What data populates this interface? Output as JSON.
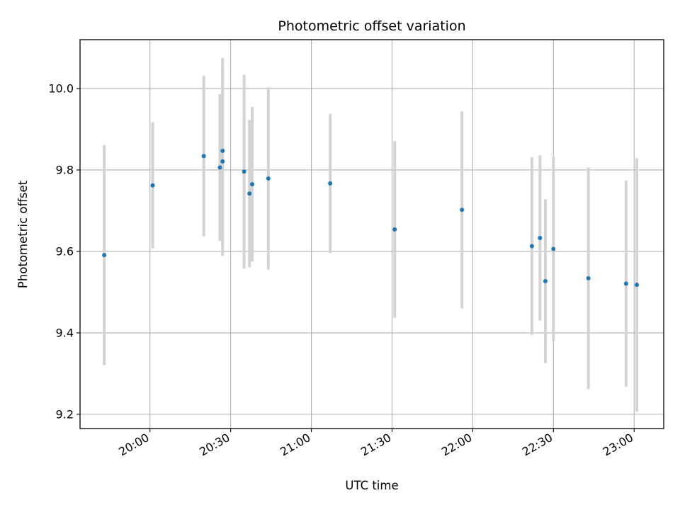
{
  "chart_data": {
    "type": "scatter",
    "title": "Photometric offset variation",
    "xlabel": "UTC time",
    "ylabel": "Photometric offset",
    "x_ticks": [
      "20:00",
      "20:30",
      "21:00",
      "21:30",
      "22:00",
      "22:30",
      "23:00"
    ],
    "y_ticks": [
      "9.2",
      "9.4",
      "9.6",
      "9.8",
      "10.0"
    ],
    "xlim": [
      "19:34",
      "23:11"
    ],
    "ylim": [
      9.165,
      10.12
    ],
    "grid": true,
    "colors": {
      "points": "#1f77b4",
      "errorbars": "#d3d3d3",
      "grid": "#b0b0b0"
    },
    "points": [
      {
        "x": "19:43",
        "y": 9.591,
        "err": 0.27
      },
      {
        "x": "20:01",
        "y": 9.762,
        "err": 0.155
      },
      {
        "x": "20:20",
        "y": 9.834,
        "err": 0.197
      },
      {
        "x": "20:26",
        "y": 9.806,
        "err": 0.18
      },
      {
        "x": "20:27",
        "y": 9.821,
        "err": 0.232
      },
      {
        "x": "20:27",
        "y": 9.847,
        "err": 0.228
      },
      {
        "x": "20:35",
        "y": 9.796,
        "err": 0.238
      },
      {
        "x": "20:37",
        "y": 9.742,
        "err": 0.181
      },
      {
        "x": "20:38",
        "y": 9.765,
        "err": 0.19
      },
      {
        "x": "20:44",
        "y": 9.779,
        "err": 0.224
      },
      {
        "x": "21:07",
        "y": 9.767,
        "err": 0.171
      },
      {
        "x": "21:31",
        "y": 9.654,
        "err": 0.217
      },
      {
        "x": "21:56",
        "y": 9.702,
        "err": 0.242
      },
      {
        "x": "22:22",
        "y": 9.613,
        "err": 0.218
      },
      {
        "x": "22:25",
        "y": 9.633,
        "err": 0.203
      },
      {
        "x": "22:27",
        "y": 9.527,
        "err": 0.201
      },
      {
        "x": "22:30",
        "y": 9.606,
        "err": 0.226
      },
      {
        "x": "22:43",
        "y": 9.534,
        "err": 0.272
      },
      {
        "x": "22:57",
        "y": 9.521,
        "err": 0.253
      },
      {
        "x": "23:01",
        "y": 9.518,
        "err": 0.311
      }
    ]
  }
}
